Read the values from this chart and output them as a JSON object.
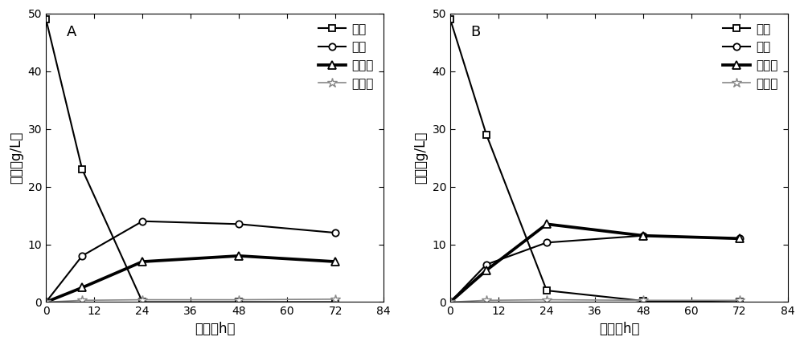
{
  "panel_A": {
    "label": "A",
    "xylose": {
      "x": [
        0,
        9,
        24,
        48,
        72
      ],
      "y": [
        49,
        23,
        0,
        0,
        0
      ]
    },
    "ethanol": {
      "x": [
        0,
        9,
        24,
        48,
        72
      ],
      "y": [
        0,
        8,
        14,
        13.5,
        12
      ]
    },
    "xylitol": {
      "x": [
        0,
        9,
        24,
        48,
        72
      ],
      "y": [
        0,
        2.5,
        7,
        8,
        7
      ]
    },
    "vanillin": {
      "x": [
        0,
        9,
        24,
        48,
        72
      ],
      "y": [
        0,
        0.3,
        0.4,
        0.4,
        0.5
      ]
    }
  },
  "panel_B": {
    "label": "B",
    "xylose": {
      "x": [
        0,
        9,
        24,
        48,
        72
      ],
      "y": [
        49,
        29,
        2,
        0.2,
        0
      ]
    },
    "ethanol": {
      "x": [
        0,
        9,
        24,
        48,
        72
      ],
      "y": [
        0,
        6.5,
        10.3,
        11.5,
        11
      ]
    },
    "xylitol": {
      "x": [
        0,
        9,
        24,
        48,
        72
      ],
      "y": [
        0,
        5.5,
        13.5,
        11.5,
        11
      ]
    },
    "vanillin": {
      "x": [
        0,
        9,
        24,
        48,
        72
      ],
      "y": [
        0,
        0.3,
        0.4,
        0.3,
        0.3
      ]
    }
  },
  "legend_labels": [
    "木糖",
    "乙醇",
    "木糖醇",
    "香草醒"
  ],
  "ylabel": "浓度（g/L）",
  "xlabel": "时间（h）",
  "ylim": [
    0,
    50
  ],
  "xlim": [
    0,
    84
  ],
  "xticks": [
    0,
    12,
    24,
    36,
    48,
    60,
    72,
    84
  ],
  "yticks": [
    0,
    10,
    20,
    30,
    40,
    50
  ],
  "line_color": "#000000",
  "line_color_vanillin": "#888888",
  "marker_square": "s",
  "marker_circle": "o",
  "marker_triangle": "^",
  "marker_star": "*",
  "linewidth": 1.5,
  "markersize_sq": 6,
  "markersize_ci": 6,
  "markersize_tr": 7,
  "markersize_st": 9,
  "fontsize_label": 12,
  "fontsize_tick": 10,
  "fontsize_legend": 11,
  "fontsize_panel": 13
}
